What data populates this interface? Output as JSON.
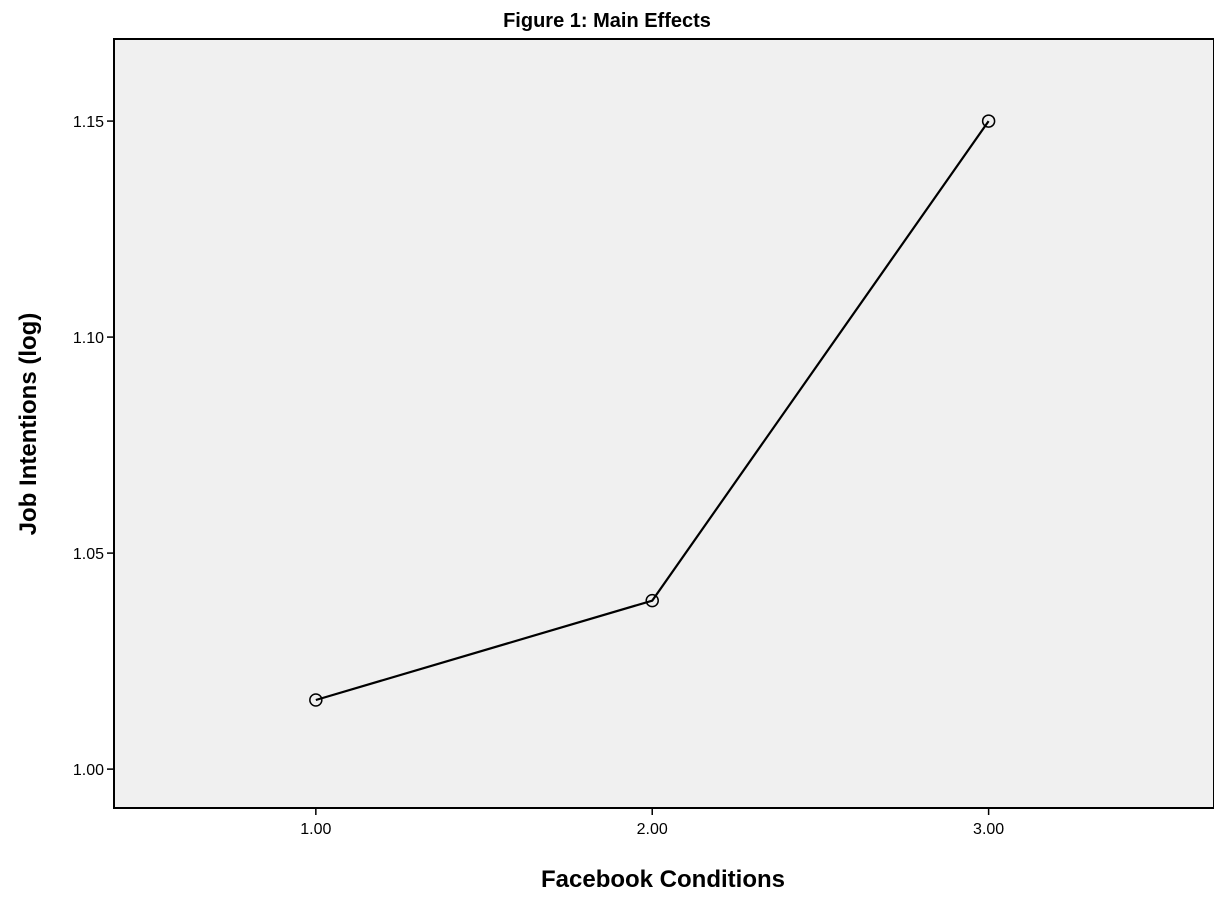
{
  "chart_data": {
    "type": "line",
    "title": "Figure 1: Main Effects",
    "xlabel": "Facebook Conditions",
    "ylabel": "Job Intentions (log)",
    "x": [
      1.0,
      2.0,
      3.0
    ],
    "x_tick_labels": [
      "1.00",
      "2.00",
      "3.00"
    ],
    "xlim": [
      0.4,
      3.67
    ],
    "y_ticks": [
      1.0,
      1.05,
      1.1,
      1.15
    ],
    "y_tick_labels": [
      "1.00",
      "1.05",
      "1.10",
      "1.15"
    ],
    "ylim": [
      0.991,
      1.169
    ],
    "series": [
      {
        "values": [
          1.016,
          1.039,
          1.15
        ],
        "marker": "open-circle",
        "color": "#000000"
      }
    ],
    "grid": false,
    "legend": "none",
    "plot_background": "#f0f0f0",
    "page_background": "#ffffff"
  }
}
